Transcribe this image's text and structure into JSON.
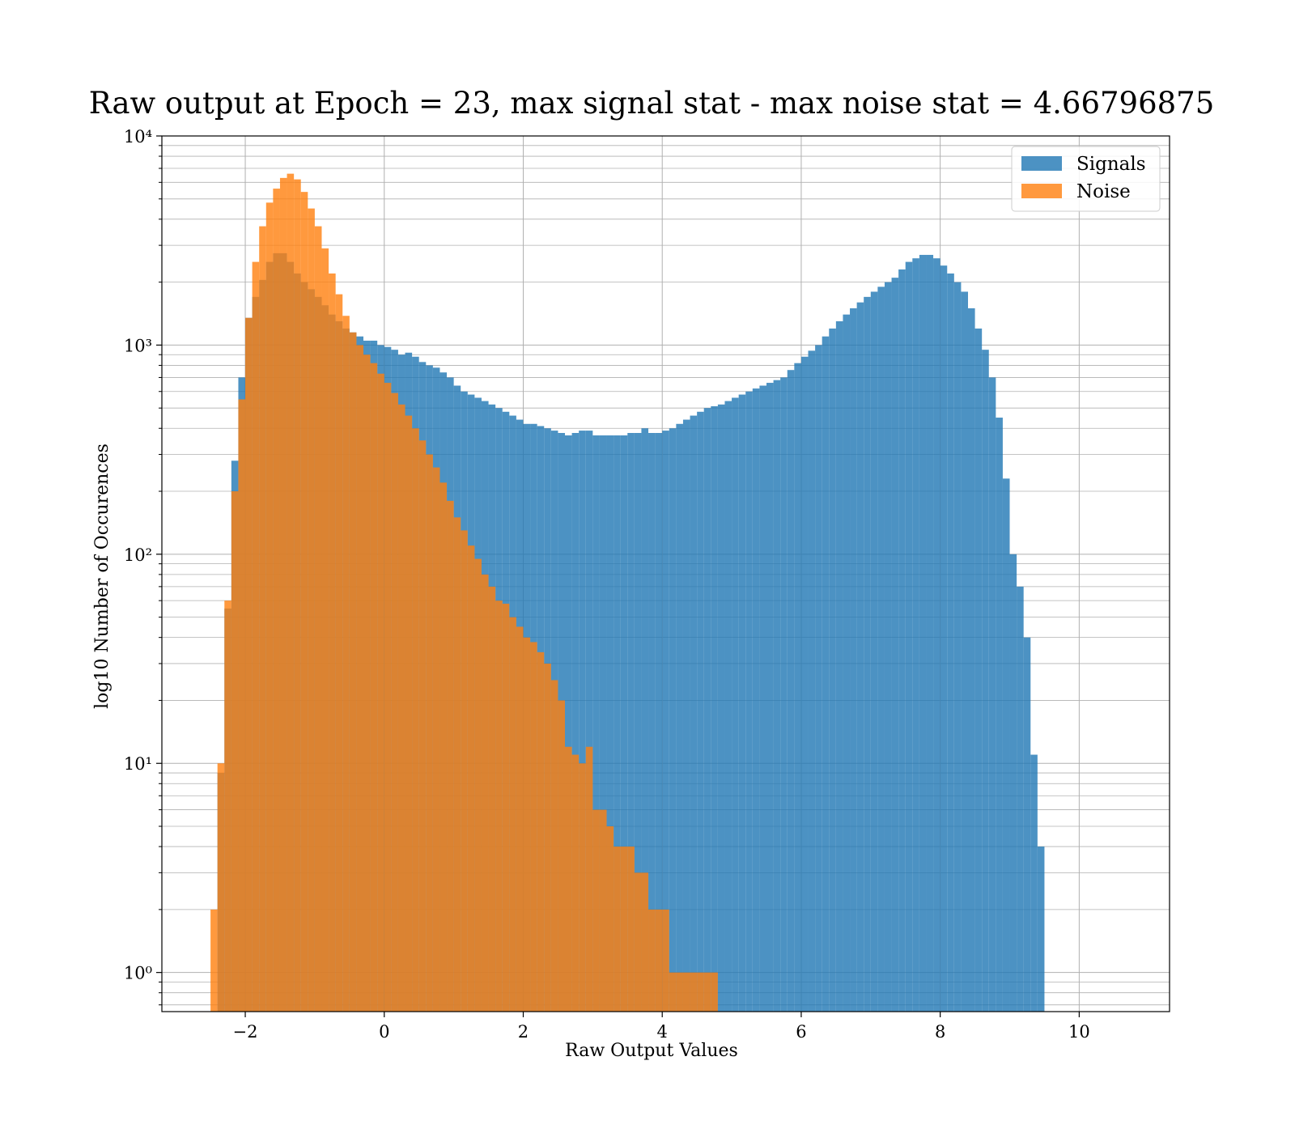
{
  "chart_data": {
    "type": "bar",
    "title": "Raw output at Epoch = 23, max signal stat - max noise stat = 4.66796875",
    "xlabel": "Raw Output Values",
    "ylabel": "log10 Number of Occurences",
    "yscale": "log",
    "xlim": [
      -3.2,
      11.3
    ],
    "ylim": [
      0.65,
      10000
    ],
    "grid": true,
    "legend_position": "top-right",
    "x_ticks": [
      -2,
      0,
      2,
      4,
      6,
      8,
      10
    ],
    "x_tick_labels": [
      "−2",
      "0",
      "2",
      "4",
      "6",
      "8",
      "10"
    ],
    "y_ticks": [
      1,
      10,
      100,
      1000,
      10000
    ],
    "y_tick_labels": [
      "10⁰",
      "10¹",
      "10²",
      "10³",
      "10⁴"
    ],
    "series": [
      {
        "name": "Signals",
        "color": "#1f77b4",
        "opacity": 0.8,
        "bin_start": -2.4,
        "bin_width": 0.1,
        "values": [
          9,
          55,
          280,
          700,
          1350,
          1700,
          2050,
          2500,
          2750,
          2750,
          2500,
          2200,
          2000,
          1850,
          1700,
          1550,
          1400,
          1300,
          1200,
          1150,
          1100,
          1050,
          1050,
          1000,
          980,
          950,
          900,
          920,
          880,
          830,
          800,
          780,
          740,
          700,
          640,
          600,
          580,
          560,
          540,
          520,
          500,
          480,
          460,
          440,
          420,
          420,
          410,
          400,
          390,
          380,
          370,
          380,
          390,
          390,
          370,
          370,
          370,
          370,
          370,
          380,
          380,
          400,
          380,
          380,
          390,
          400,
          420,
          440,
          460,
          480,
          500,
          510,
          520,
          540,
          560,
          580,
          600,
          620,
          640,
          660,
          680,
          700,
          760,
          820,
          880,
          940,
          1000,
          1100,
          1200,
          1300,
          1400,
          1500,
          1600,
          1700,
          1800,
          1900,
          2000,
          2100,
          2300,
          2500,
          2600,
          2700,
          2700,
          2600,
          2400,
          2200,
          2000,
          1800,
          1500,
          1200,
          950,
          700,
          450,
          230,
          100,
          70,
          40,
          11,
          4
        ]
      },
      {
        "name": "Noise",
        "color": "#ff7f0e",
        "opacity": 0.8,
        "bin_start": -2.5,
        "bin_width": 0.1,
        "values": [
          2,
          10,
          60,
          200,
          550,
          1350,
          2500,
          3700,
          4800,
          5600,
          6300,
          6600,
          6200,
          5400,
          4500,
          3700,
          2900,
          2200,
          1750,
          1380,
          1150,
          1000,
          900,
          820,
          730,
          660,
          590,
          520,
          460,
          400,
          350,
          300,
          260,
          220,
          180,
          150,
          130,
          110,
          95,
          80,
          70,
          60,
          58,
          50,
          45,
          40,
          38,
          34,
          30,
          25,
          20,
          12,
          11,
          10,
          12,
          6,
          6,
          5,
          4,
          4,
          4,
          3,
          3,
          2,
          2,
          2,
          1,
          1,
          1,
          1,
          1,
          1,
          1
        ]
      }
    ]
  }
}
